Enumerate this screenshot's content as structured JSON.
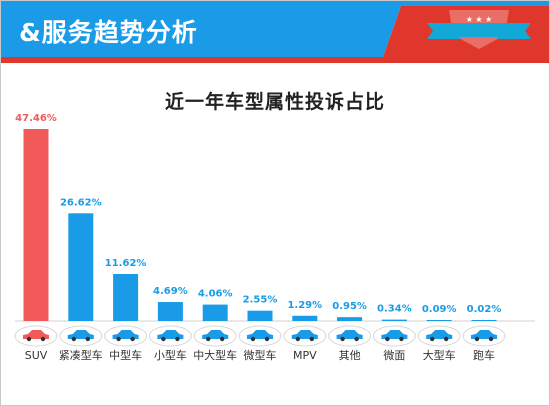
{
  "header": {
    "title": "&服务趋势分析",
    "bg_color": "#1a9be8",
    "accent_color": "#e0372c",
    "badge_color": "#12a9d9"
  },
  "chart_data": {
    "type": "bar",
    "title": "近一年车型属性投诉占比",
    "xlabel": "",
    "ylabel": "",
    "grid": false,
    "categories": [
      "SUV",
      "紧凑型车",
      "中型车",
      "小型车",
      "中大型车",
      "微型车",
      "MPV",
      "其他",
      "微面",
      "大型车",
      "跑车"
    ],
    "values": [
      47.46,
      26.62,
      11.62,
      4.69,
      4.06,
      2.55,
      1.29,
      0.95,
      0.34,
      0.09,
      0.02
    ],
    "value_labels": [
      "47.46%",
      "26.62%",
      "11.62%",
      "4.69%",
      "4.06%",
      "2.55%",
      "1.29%",
      "0.95%",
      "0.34%",
      "0.09%",
      "0.02%"
    ],
    "highlight_index": 0,
    "colors": {
      "highlight": "#f25a5a",
      "normal": "#1a9be8"
    }
  }
}
